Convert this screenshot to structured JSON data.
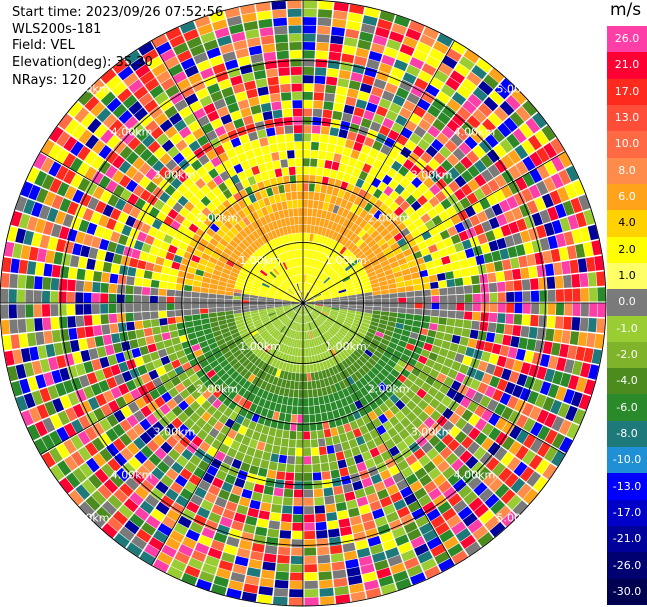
{
  "info": {
    "start_time": "Start time: 2023/09/26 07:52:56",
    "station": "WLS200s-181",
    "field": "Field: VEL",
    "elevation": "Elevation(deg): 35.30",
    "nrays": "NRays: 120"
  },
  "colorbar": {
    "unit": "m/s",
    "levels": [
      {
        "label": "26.0",
        "color": "#ff3fa8",
        "text_color": "#ffffff"
      },
      {
        "label": "21.0",
        "color": "#ff0033",
        "text_color": "#ffffff"
      },
      {
        "label": "17.0",
        "color": "#ff2a1e",
        "text_color": "#ffffff"
      },
      {
        "label": "13.0",
        "color": "#ff4d38",
        "text_color": "#ffffff"
      },
      {
        "label": "10.0",
        "color": "#ff6a45",
        "text_color": "#ffffff"
      },
      {
        "label": "8.0",
        "color": "#ff8c4a",
        "text_color": "#ffffff"
      },
      {
        "label": "6.0",
        "color": "#ffa31a",
        "text_color": "#ffffff"
      },
      {
        "label": "4.0",
        "color": "#ffd200",
        "text_color": "#000000"
      },
      {
        "label": "2.0",
        "color": "#ffff00",
        "text_color": "#000000"
      },
      {
        "label": "1.0",
        "color": "#ffff66",
        "text_color": "#000000"
      },
      {
        "label": "0.0",
        "color": "#7a7a7a",
        "text_color": "#ffffff"
      },
      {
        "label": "-1.0",
        "color": "#9acd32",
        "text_color": "#ffffff"
      },
      {
        "label": "-2.0",
        "color": "#7fb32a",
        "text_color": "#ffffff"
      },
      {
        "label": "-4.0",
        "color": "#4c8c1e",
        "text_color": "#ffffff"
      },
      {
        "label": "-6.0",
        "color": "#2a8a2a",
        "text_color": "#ffffff"
      },
      {
        "label": "-8.0",
        "color": "#1e7a7a",
        "text_color": "#ffffff"
      },
      {
        "label": "-10.0",
        "color": "#1f8fd6",
        "text_color": "#ffffff"
      },
      {
        "label": "-13.0",
        "color": "#0000ff",
        "text_color": "#ffffff"
      },
      {
        "label": "-17.0",
        "color": "#0000c8",
        "text_color": "#ffffff"
      },
      {
        "label": "-21.0",
        "color": "#00009a",
        "text_color": "#ffffff"
      },
      {
        "label": "-26.0",
        "color": "#000070",
        "text_color": "#ffffff"
      },
      {
        "label": "-30.0",
        "color": "#000050",
        "text_color": "#ffffff"
      }
    ]
  },
  "range_labels": [
    "1.00km",
    "2.00km",
    "3.00km",
    "4.00km",
    "5.00km"
  ],
  "display": {
    "rings": 5,
    "grid_color": "#000000",
    "noise_palette": [
      "#ff3fa8",
      "#ff0033",
      "#ff6a45",
      "#ffa31a",
      "#ffff00",
      "#9acd32",
      "#4c8c1e",
      "#2a8a2a",
      "#1e7a7a",
      "#0000ff",
      "#00009a",
      "#7a7a7a",
      "#ff8c4a",
      "#ff2a1e"
    ]
  }
}
